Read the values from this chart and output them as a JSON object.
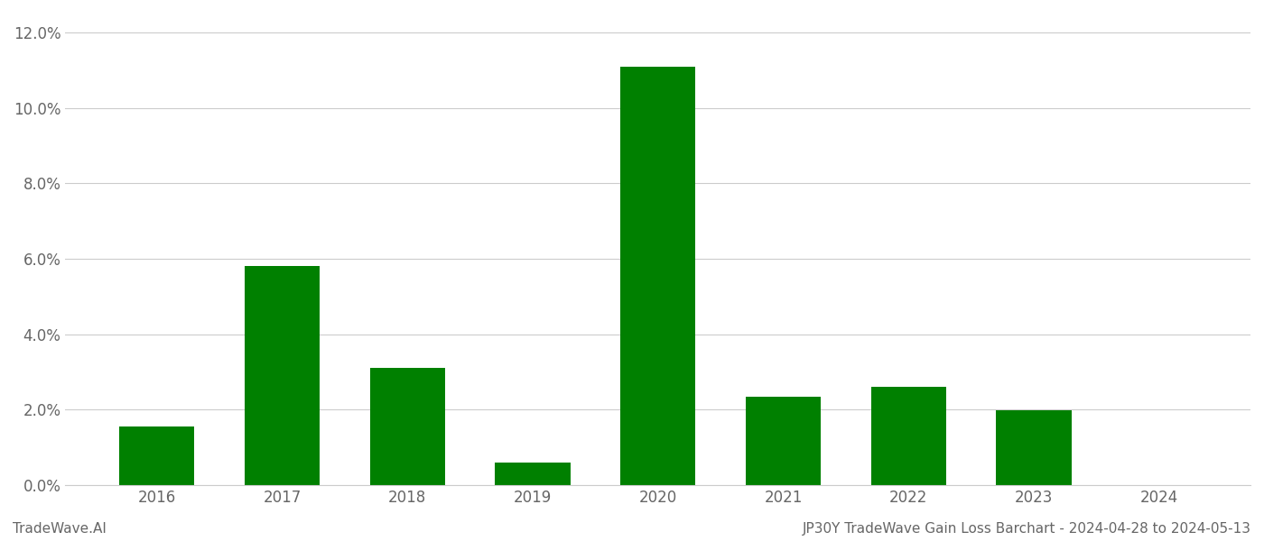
{
  "categories": [
    "2016",
    "2017",
    "2018",
    "2019",
    "2020",
    "2021",
    "2022",
    "2023",
    "2024"
  ],
  "values": [
    0.0155,
    0.058,
    0.031,
    0.006,
    0.111,
    0.0235,
    0.026,
    0.0198,
    0.0
  ],
  "bar_color": "#008000",
  "background_color": "#ffffff",
  "footer_left": "TradeWave.AI",
  "footer_right": "JP30Y TradeWave Gain Loss Barchart - 2024-04-28 to 2024-05-13",
  "ylim": [
    0,
    0.125
  ],
  "yticks": [
    0.0,
    0.02,
    0.04,
    0.06,
    0.08,
    0.1,
    0.12
  ],
  "grid_color": "#cccccc",
  "tick_label_color": "#666666",
  "bar_width": 0.6
}
